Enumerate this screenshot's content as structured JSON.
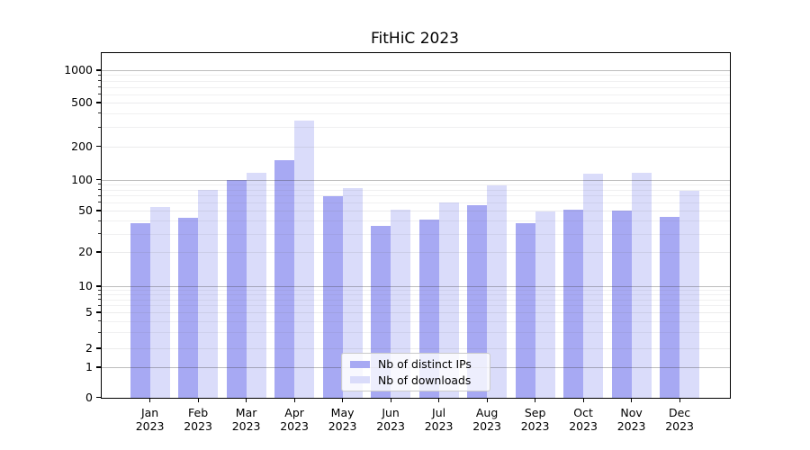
{
  "chart_data": {
    "type": "bar",
    "title": "FitHiC 2023",
    "categories": [
      "Jan 2023",
      "Feb 2023",
      "Mar 2023",
      "Apr 2023",
      "May 2023",
      "Jun 2023",
      "Jul 2023",
      "Aug 2023",
      "Sep 2023",
      "Oct 2023",
      "Nov 2023",
      "Dec 2023"
    ],
    "series": [
      {
        "name": "Nb of distinct IPs",
        "color": "#a7a9f3",
        "values": [
          38,
          43,
          100,
          150,
          69,
          36,
          41,
          57,
          38,
          52,
          51,
          44
        ]
      },
      {
        "name": "Nb of downloads",
        "color": "#dadcfa",
        "values": [
          55,
          80,
          117,
          345,
          84,
          52,
          60,
          88,
          50,
          114,
          116,
          79
        ]
      }
    ],
    "xlabel": "",
    "ylabel": "",
    "yscale": "symlog",
    "yticks": [
      0,
      1,
      2,
      5,
      10,
      20,
      50,
      100,
      200,
      500,
      1000
    ],
    "minor_yticks": [
      3,
      4,
      6,
      7,
      8,
      9,
      30,
      40,
      60,
      70,
      80,
      90,
      300,
      400,
      600,
      700,
      800,
      900
    ],
    "ylim": [
      0,
      1350
    ],
    "grid": true,
    "legend_position": "lower center",
    "background": "#ffffff",
    "bar_alpha_note": "gridlines visible through translucent bars"
  }
}
